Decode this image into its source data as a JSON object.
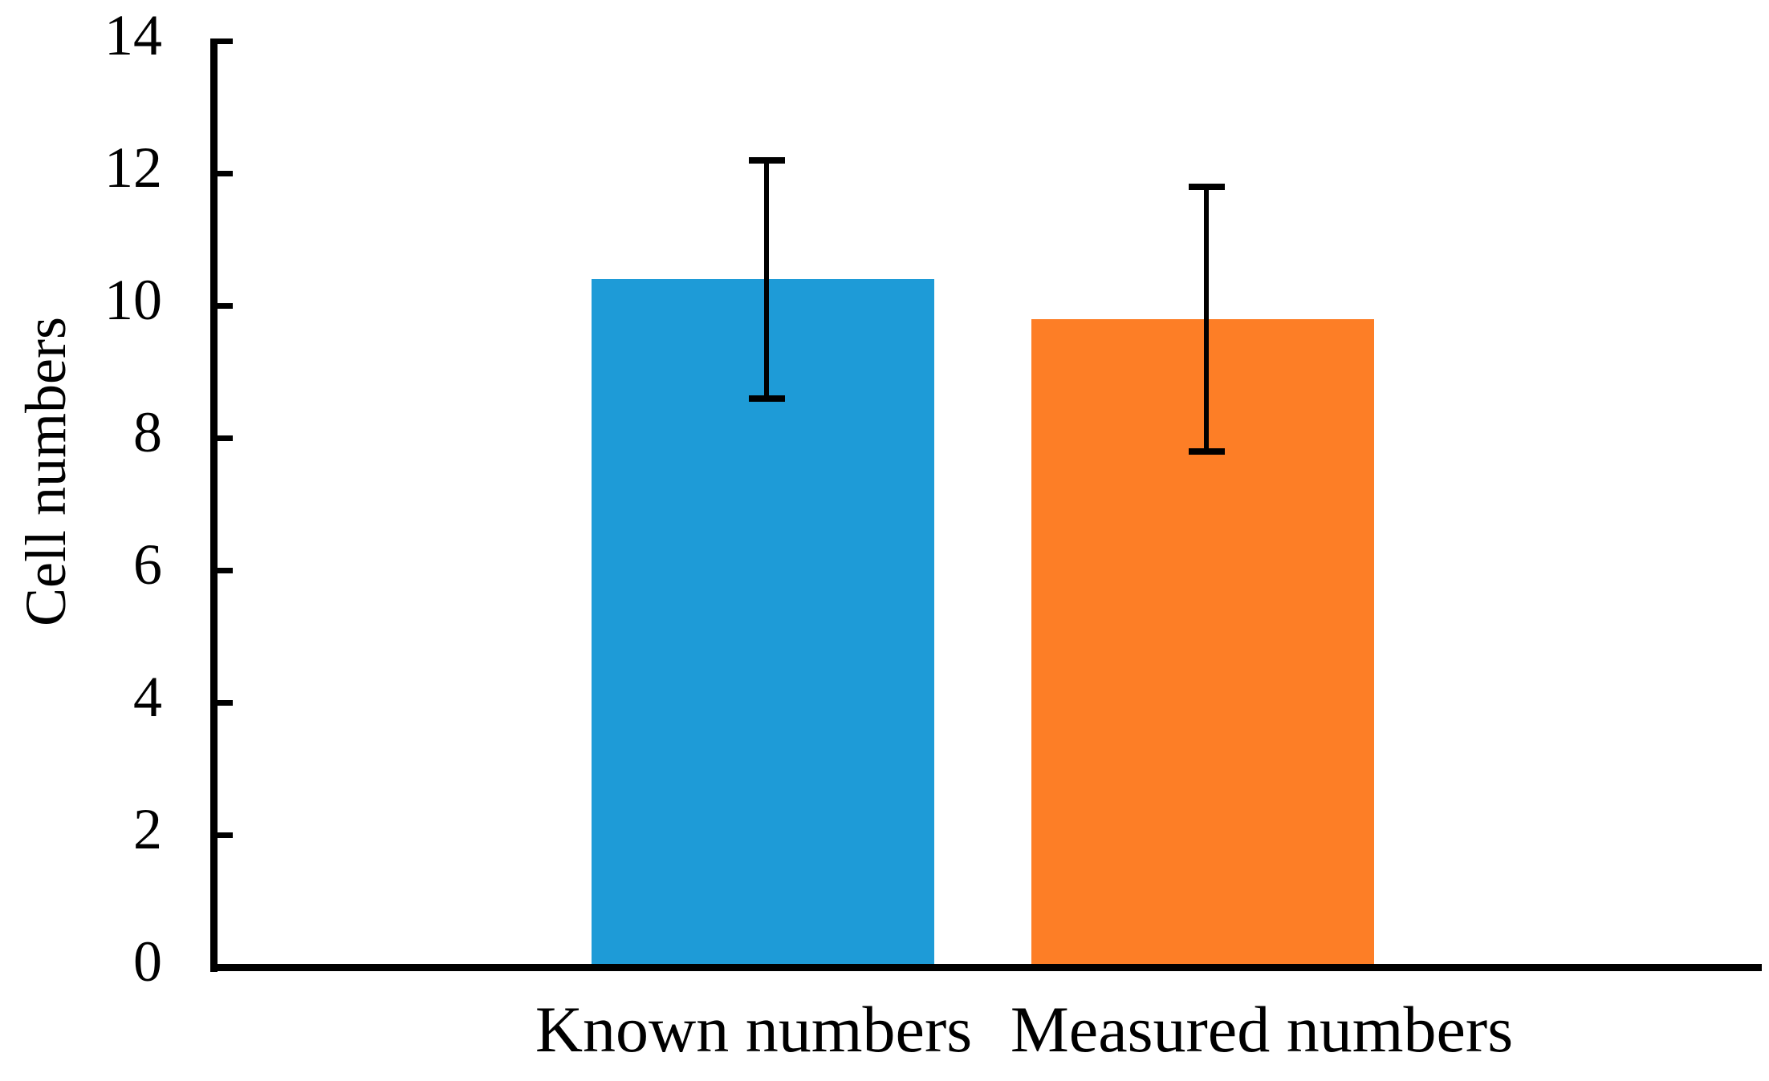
{
  "chart_data": {
    "type": "bar",
    "title": "",
    "xlabel": "",
    "ylabel": "Cell numbers",
    "categories": [
      "Known numbers",
      "Measured numbers"
    ],
    "values": [
      10.4,
      9.8
    ],
    "error_bars": [
      1.8,
      2.0
    ],
    "error_caps": {
      "known_numbers": {
        "upper": 12.2,
        "lower": 8.6
      },
      "measured_numbers": {
        "upper": 11.8,
        "lower": 7.8
      }
    },
    "ylim": [
      0,
      14
    ],
    "yticks": [
      0,
      2,
      4,
      6,
      8,
      10,
      12,
      14
    ],
    "bar_colors": [
      "#1e9bd7",
      "#fd7e26"
    ],
    "error_bar_color": "#000000",
    "axis_color": "#000000",
    "grid": false,
    "legend_position": "none",
    "tick_direction": "inside-right"
  }
}
